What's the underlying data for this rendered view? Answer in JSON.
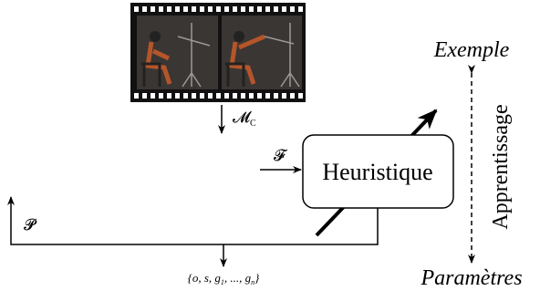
{
  "diagram": {
    "box_label": "Heuristique",
    "top_right_label": "Exemple",
    "bottom_right_label": "Paramètres",
    "vertical_label": "Apprentissage",
    "input_film_label": {
      "main": "𝓜",
      "sub": "C"
    },
    "input_side_label": "𝓕",
    "feedback_label": "𝓟",
    "output_label": {
      "parts": [
        "{o, s, g",
        "1",
        ", ..., g",
        "n",
        "}"
      ]
    }
  }
}
